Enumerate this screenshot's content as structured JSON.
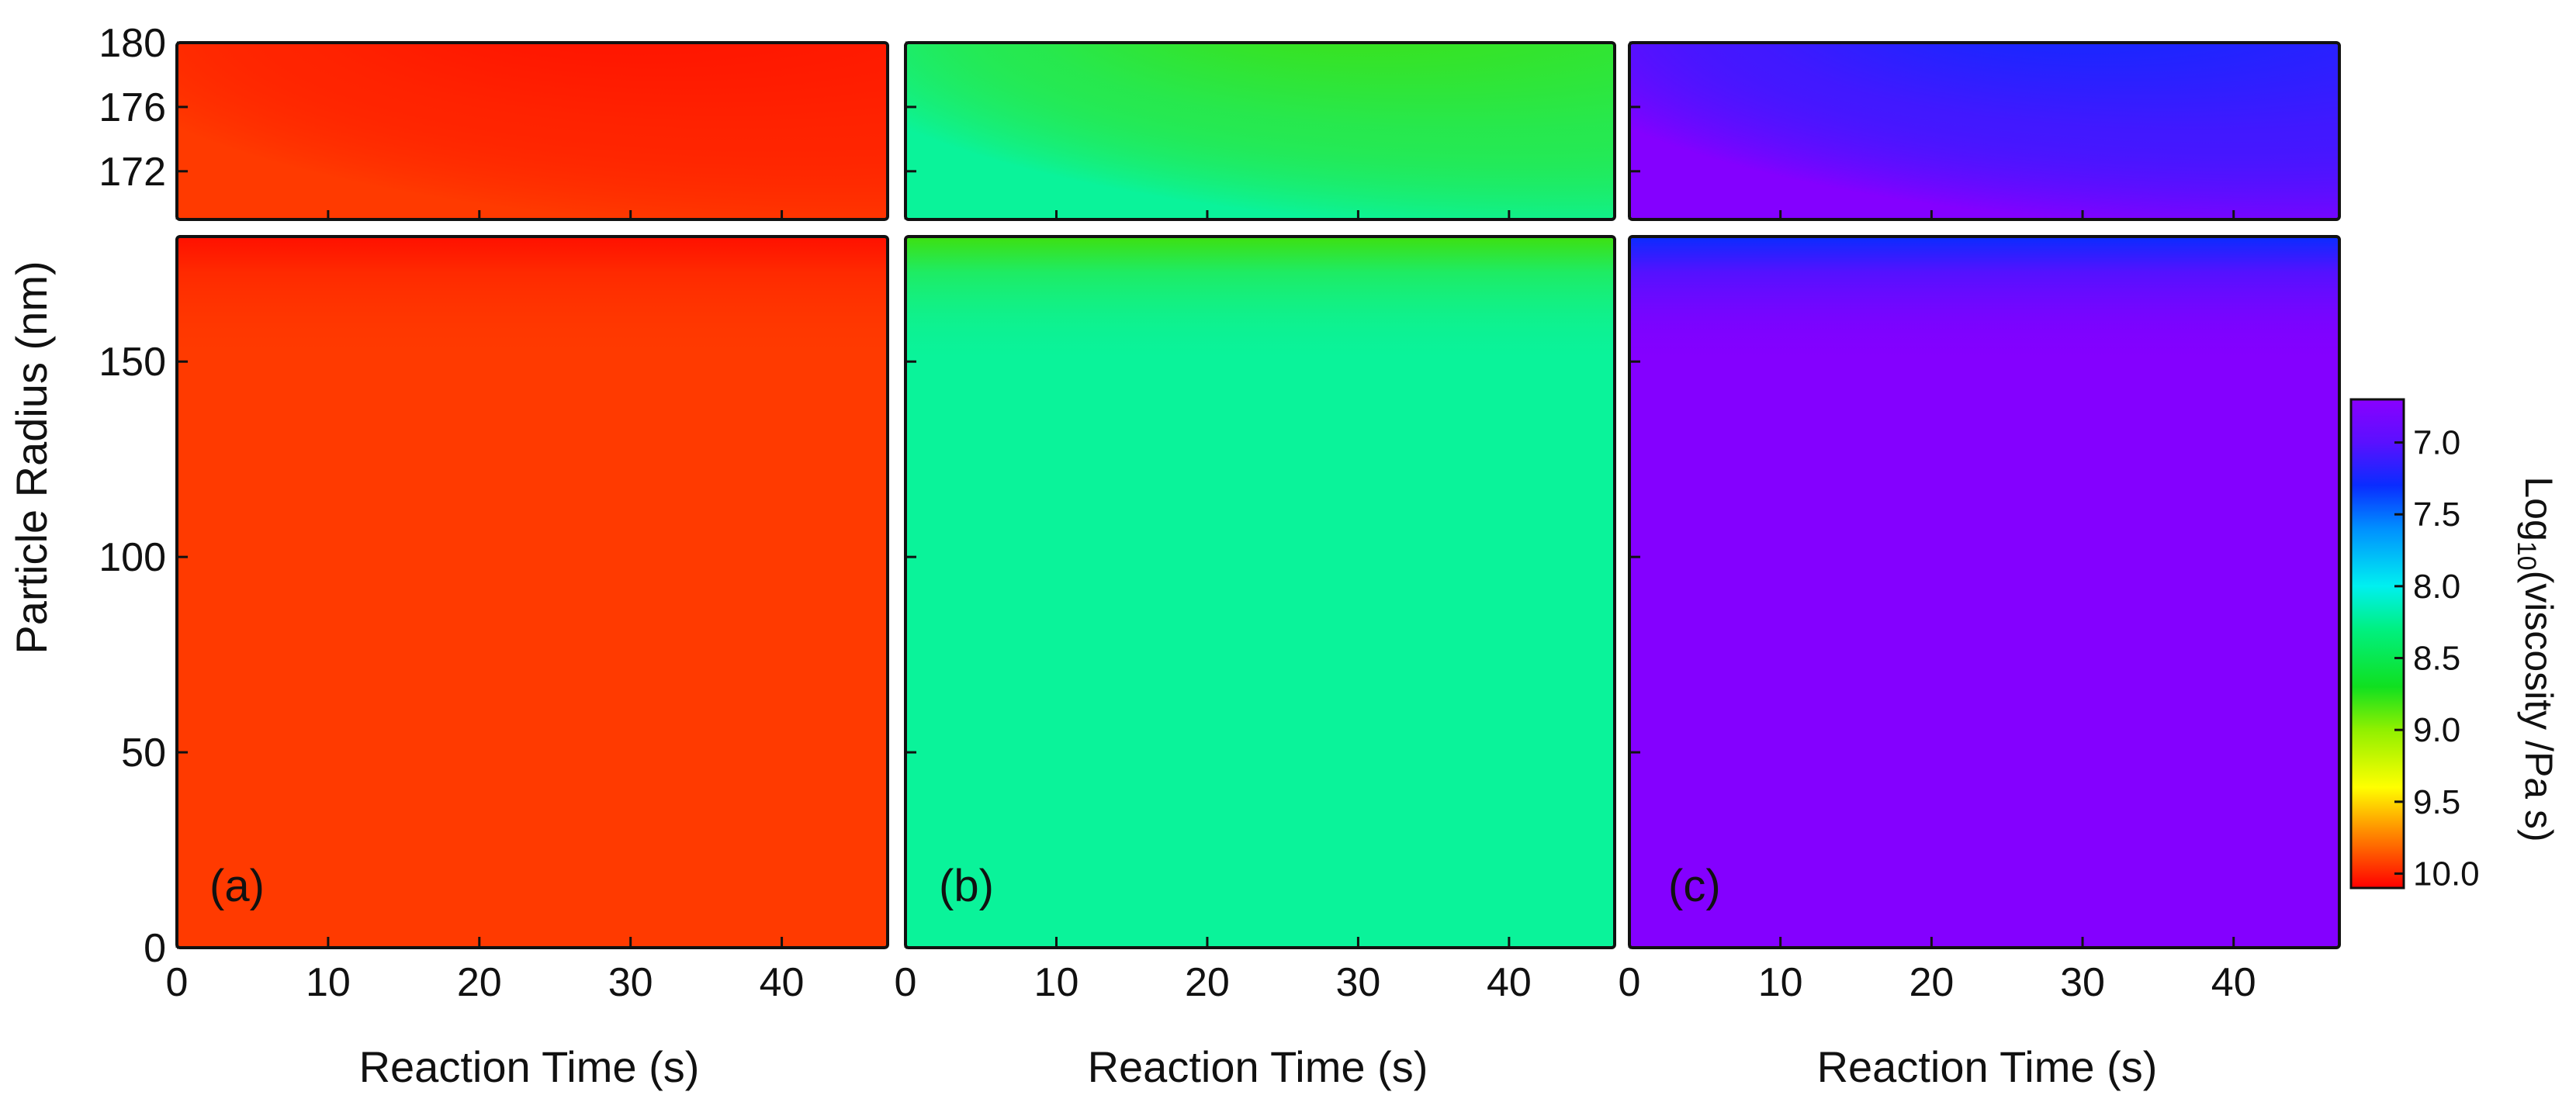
{
  "chart_data": {
    "type": "heatmap",
    "y_axis_label": "Particle Radius (nm)",
    "x_axis_label": "Reaction Time (s)",
    "x_range": [
      0,
      47
    ],
    "x_ticks": [
      0,
      10,
      20,
      30,
      40
    ],
    "x_tick_labels": [
      "0",
      "10",
      "20",
      "30",
      "40"
    ],
    "top_row": {
      "y_range": [
        169,
        180
      ],
      "y_ticks": [
        172,
        176,
        180
      ],
      "y_tick_labels": [
        "172",
        "176",
        "180"
      ]
    },
    "bottom_row": {
      "y_range": [
        0,
        182
      ],
      "y_ticks": [
        0,
        50,
        100,
        150
      ],
      "y_tick_labels": [
        "0",
        "50",
        "100",
        "150"
      ]
    },
    "colorbar": {
      "title_main": "Log",
      "title_sub": "10",
      "title_rest": "(viscosity /Pa s)",
      "range": [
        6.7,
        10.1
      ],
      "ticks": [
        7.0,
        7.5,
        8.0,
        8.5,
        9.0,
        9.5,
        10.0
      ],
      "tick_labels": [
        "7.0",
        "7.5",
        "8.0",
        "8.5",
        "9.0",
        "9.5",
        "10.0"
      ],
      "stops": [
        {
          "value": 6.7,
          "color": "#8a00ff"
        },
        {
          "value": 7.0,
          "color": "#5a10ff"
        },
        {
          "value": 7.3,
          "color": "#0a2cff"
        },
        {
          "value": 7.6,
          "color": "#0090ff"
        },
        {
          "value": 8.0,
          "color": "#00f0f0"
        },
        {
          "value": 8.3,
          "color": "#00f080"
        },
        {
          "value": 8.7,
          "color": "#10e020"
        },
        {
          "value": 9.0,
          "color": "#90f000"
        },
        {
          "value": 9.4,
          "color": "#ffff00"
        },
        {
          "value": 9.7,
          "color": "#ff9000"
        },
        {
          "value": 10.1,
          "color": "#ff0000"
        }
      ]
    },
    "panels": [
      {
        "label": "(a)",
        "bulk_value": 9.85,
        "surface_value": 10.05,
        "bulk_color": "#ff3a00",
        "surface_color": "#ff1000"
      },
      {
        "label": "(b)",
        "bulk_value": 8.25,
        "surface_value": 8.8,
        "bulk_color": "#0af39a",
        "surface_color": "#3ee010"
      },
      {
        "label": "(c)",
        "bulk_value": 6.75,
        "surface_value": 7.35,
        "bulk_color": "#8400ff",
        "surface_color": "#0a2cff"
      }
    ]
  }
}
